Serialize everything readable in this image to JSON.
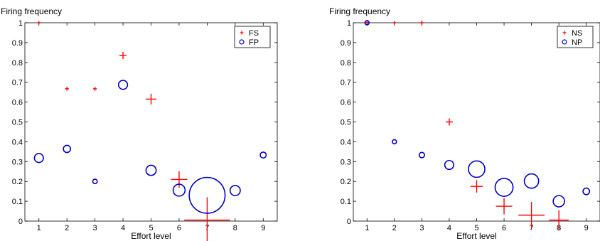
{
  "colors": {
    "plus": "#ff0000",
    "circle": "#0000cc",
    "axis": "#000000"
  },
  "chart_data": [
    {
      "type": "scatter",
      "ylabel": "Firing frequency",
      "xlabel": "Effort level",
      "xlim": [
        0.5,
        9.5
      ],
      "ylim": [
        0,
        1
      ],
      "xticks": [
        1,
        2,
        3,
        4,
        5,
        6,
        7,
        8,
        9
      ],
      "yticks": [
        0,
        0.1,
        0.2,
        0.3,
        0.4,
        0.5,
        0.6,
        0.7,
        0.8,
        0.9,
        1
      ],
      "legend_position": "top-right",
      "grid": false,
      "series": [
        {
          "name": "FS",
          "marker": "plus",
          "color": "#ff0000",
          "x": [
            1,
            2,
            3,
            4,
            5,
            6,
            7
          ],
          "y": [
            1.0,
            0.667,
            0.667,
            0.835,
            0.615,
            0.21,
            0.005
          ],
          "relative_size": [
            1,
            1.2,
            1.2,
            2.2,
            3.3,
            5,
            14
          ]
        },
        {
          "name": "FP",
          "marker": "circle",
          "color": "#0000cc",
          "x": [
            1,
            2,
            3,
            4,
            5,
            6,
            7,
            8,
            9
          ],
          "y": [
            0.318,
            0.364,
            0.2,
            0.687,
            0.256,
            0.156,
            0.13,
            0.154,
            0.333
          ],
          "relative_size": [
            3,
            2.4,
            1.5,
            3,
            3.4,
            4,
            12,
            3.4,
            2
          ]
        }
      ]
    },
    {
      "type": "scatter",
      "ylabel": "Firing frequency",
      "xlabel": "Effort level",
      "xlim": [
        0.5,
        9.5
      ],
      "ylim": [
        0,
        1
      ],
      "xticks": [
        1,
        2,
        3,
        4,
        5,
        6,
        7,
        8,
        9
      ],
      "yticks": [
        0,
        0.1,
        0.2,
        0.3,
        0.4,
        0.5,
        0.6,
        0.7,
        0.8,
        0.9,
        1
      ],
      "legend_position": "top-right",
      "grid": false,
      "series": [
        {
          "name": "NS",
          "marker": "plus",
          "color": "#ff0000",
          "x": [
            1,
            2,
            3,
            4,
            5,
            6,
            7,
            8
          ],
          "y": [
            1.0,
            1.0,
            1.0,
            0.5,
            0.175,
            0.075,
            0.03,
            0.005
          ],
          "relative_size": [
            1,
            1,
            1.3,
            2.2,
            3.8,
            5,
            8,
            6
          ]
        },
        {
          "name": "NP",
          "marker": "circle",
          "color": "#0000cc",
          "x": [
            1,
            2,
            3,
            4,
            5,
            6,
            7,
            8,
            9
          ],
          "y": [
            1.0,
            0.4,
            0.333,
            0.283,
            0.262,
            0.17,
            0.202,
            0.1,
            0.15
          ],
          "relative_size": [
            1.4,
            1.4,
            1.8,
            3,
            5.5,
            6,
            4.8,
            3.8,
            2.2
          ]
        }
      ]
    }
  ]
}
